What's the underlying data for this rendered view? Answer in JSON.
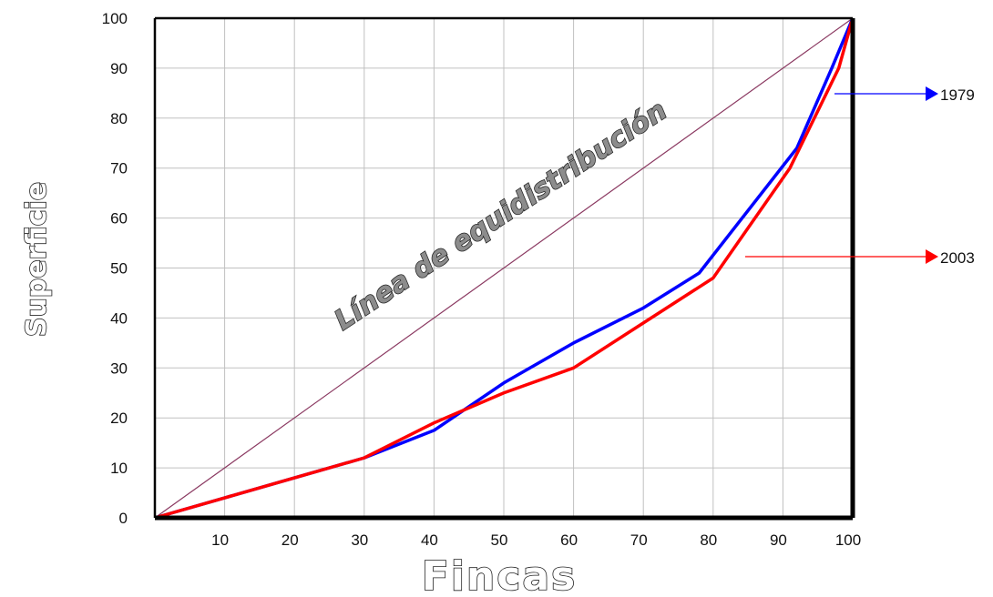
{
  "chart_data": {
    "type": "line",
    "xlabel": "Fincas",
    "ylabel": "Superficie",
    "xlim": [
      0,
      100
    ],
    "ylim": [
      0,
      100
    ],
    "x_ticks": [
      10,
      20,
      30,
      40,
      50,
      60,
      70,
      80,
      90,
      100
    ],
    "y_ticks": [
      0,
      10,
      20,
      30,
      40,
      50,
      60,
      70,
      80,
      90,
      100
    ],
    "grid": true,
    "annotation": "Línea de equidistribución",
    "equidistribution": {
      "x": [
        0,
        100
      ],
      "y": [
        0,
        100
      ],
      "color": "#8b3a62"
    },
    "series": [
      {
        "name": "1979",
        "color": "#0000ff",
        "x": [
          0,
          10,
          20,
          30,
          40,
          50,
          60,
          70,
          78,
          92,
          97,
          100
        ],
        "y": [
          0,
          4,
          8,
          12,
          17.5,
          27,
          35,
          42,
          49,
          74,
          90,
          100
        ]
      },
      {
        "name": "2003",
        "color": "#ff0000",
        "x": [
          0,
          10,
          20,
          30,
          40,
          50,
          60,
          70,
          80,
          91,
          98,
          100
        ],
        "y": [
          0,
          4,
          8,
          12,
          19,
          25,
          30,
          39,
          48,
          70,
          90,
          100
        ]
      }
    ]
  }
}
